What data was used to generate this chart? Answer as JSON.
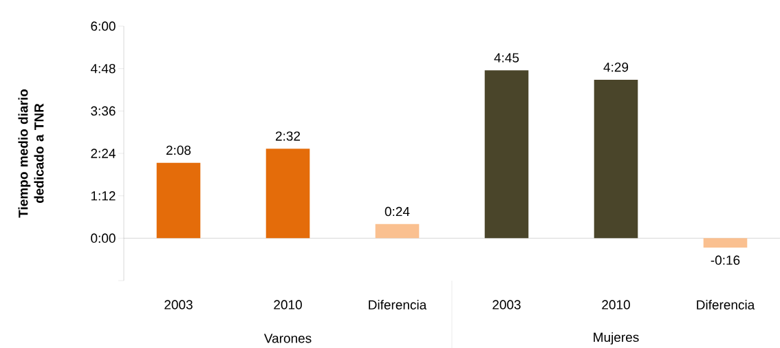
{
  "chart_data": {
    "type": "bar",
    "ylabel": "Tiempo medio diario dedicado a TNR",
    "categories": [
      "2003",
      "2010",
      "Diferencia",
      "2003",
      "2010",
      "Diferencia"
    ],
    "values": [
      2.1333,
      2.5333,
      0.4,
      4.75,
      4.4833,
      -0.2667
    ],
    "value_labels": [
      "2:08",
      "2:32",
      "0:24",
      "4:45",
      "4:29",
      "-0:16"
    ],
    "colors": [
      "#e46c0a",
      "#e46c0a",
      "#fac090",
      "#4a452a",
      "#4a452a",
      "#fac090"
    ],
    "ylim": [
      -1.2,
      6
    ],
    "yticks": [
      {
        "value": -1.2,
        "label": null
      },
      {
        "value": 0,
        "label": "0:00"
      },
      {
        "value": 1.2,
        "label": "1:12"
      },
      {
        "value": 2.4,
        "label": "2:24"
      },
      {
        "value": 3.6,
        "label": "3:36"
      },
      {
        "value": 4.8,
        "label": "4:48"
      },
      {
        "value": 6,
        "label": "6:00"
      }
    ],
    "annotations": [
      "Varones",
      "Mujeres"
    ]
  }
}
